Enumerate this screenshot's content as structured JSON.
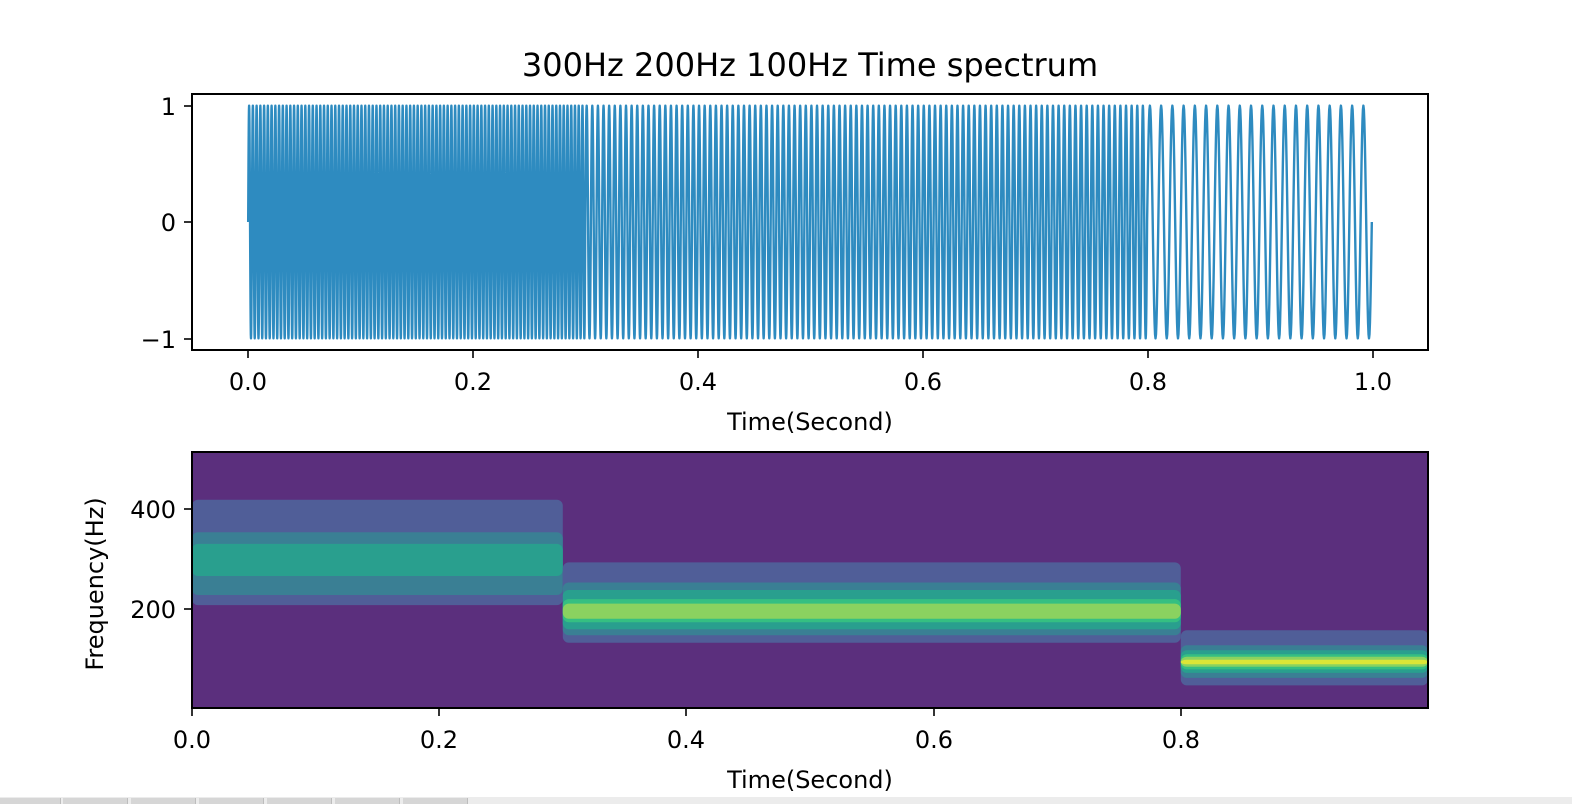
{
  "chart_data": [
    {
      "type": "line",
      "title": "300Hz 200Hz 100Hz Time spectrum",
      "xlabel": "Time(Second)",
      "ylabel": "",
      "xlim": [
        -0.05,
        1.05
      ],
      "ylim": [
        -1.1,
        1.1
      ],
      "xticks": [
        "0.0",
        "0.2",
        "0.4",
        "0.6",
        "0.8",
        "1.0"
      ],
      "yticks": [
        "1",
        "0",
        "−1"
      ],
      "series": [
        {
          "color": "#2e8bc0",
          "segments": [
            {
              "t_start": 0.0,
              "t_end": 0.3,
              "frequency_hz": 300,
              "amplitude": 1.0
            },
            {
              "t_start": 0.3,
              "t_end": 0.8,
              "frequency_hz": 200,
              "amplitude": 1.0
            },
            {
              "t_start": 0.8,
              "t_end": 1.0,
              "frequency_hz": 100,
              "amplitude": 1.0
            }
          ]
        }
      ],
      "grid": false,
      "legend": "none"
    },
    {
      "type": "heatmap",
      "title": "",
      "xlabel": "Time(Second)",
      "ylabel": "Frequency(Hz)",
      "xlim": [
        0.0,
        1.0
      ],
      "ylim": [
        5,
        515
      ],
      "xticks": [
        "0.0",
        "0.2",
        "0.4",
        "0.6",
        "0.8"
      ],
      "yticks": [
        "200",
        "400"
      ],
      "colormap": [
        "#5b2f7d",
        "#505e98",
        "#3a7f94",
        "#299f8e",
        "#35bf82",
        "#8ad260",
        "#dce636"
      ],
      "bands": [
        {
          "t_start": 0.0,
          "t_end": 0.3,
          "center_hz": 300,
          "levels": [
            {
              "lo": 210,
              "hi": 420,
              "level": 1
            },
            {
              "lo": 230,
              "hi": 355,
              "level": 2
            },
            {
              "lo": 268,
              "hi": 332,
              "level": 3
            }
          ]
        },
        {
          "t_start": 0.3,
          "t_end": 0.8,
          "center_hz": 200,
          "levels": [
            {
              "lo": 135,
              "hi": 295,
              "level": 1
            },
            {
              "lo": 150,
              "hi": 255,
              "level": 2
            },
            {
              "lo": 162,
              "hi": 240,
              "level": 3
            },
            {
              "lo": 176,
              "hi": 222,
              "level": 4
            },
            {
              "lo": 183,
              "hi": 213,
              "level": 5
            }
          ]
        },
        {
          "t_start": 0.8,
          "t_end": 1.0,
          "center_hz": 100,
          "levels": [
            {
              "lo": 50,
              "hi": 160,
              "level": 1
            },
            {
              "lo": 65,
              "hi": 130,
              "level": 2
            },
            {
              "lo": 75,
              "hi": 120,
              "level": 3
            },
            {
              "lo": 82,
              "hi": 112,
              "level": 4
            },
            {
              "lo": 87,
              "hi": 107,
              "level": 5
            },
            {
              "lo": 92,
              "hi": 101,
              "level": 6
            }
          ]
        }
      ],
      "grid": false,
      "legend": "none"
    }
  ],
  "colors": {
    "signal_line": "#2e8bc0",
    "background_level": "#5b2f7d",
    "axes": "#000000"
  }
}
